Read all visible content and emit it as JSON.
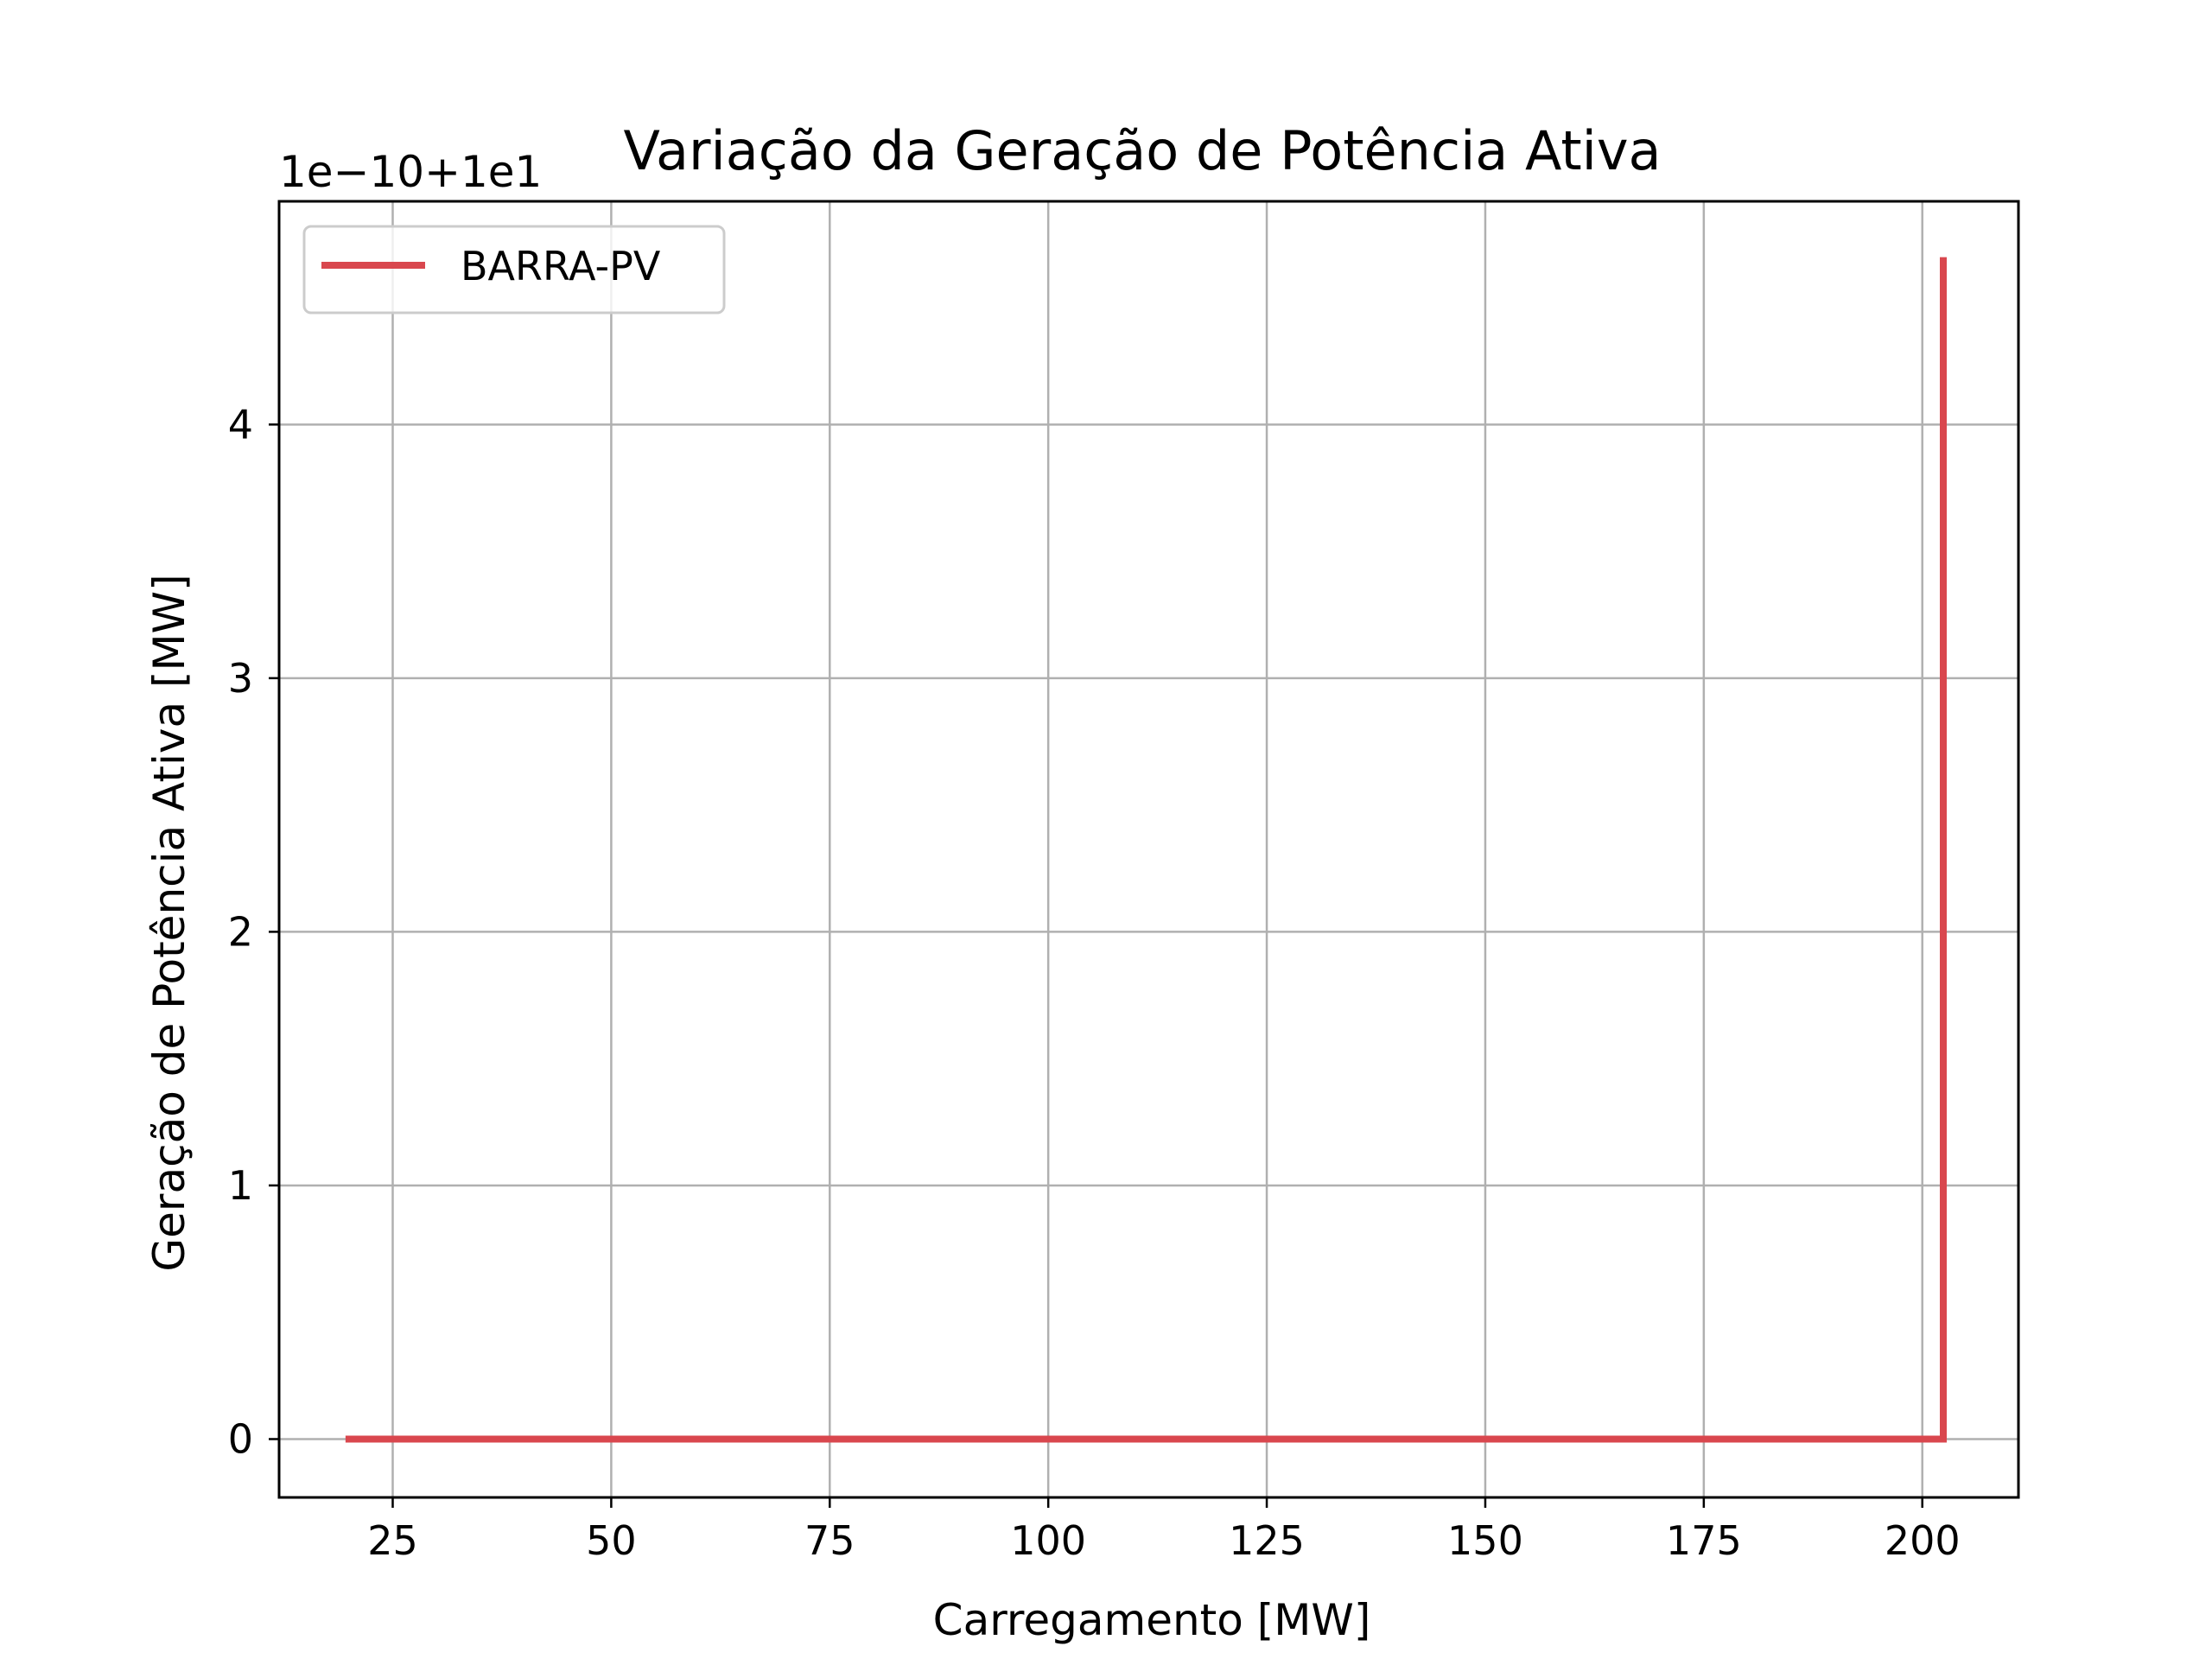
{
  "chart_data": {
    "type": "line",
    "title": "Variação da Geração de Potência Ativa",
    "xlabel": "Carregamento [MW]",
    "ylabel": "Geração de Potência Ativa [MW]",
    "y_offset_text": "1e−10+1e1",
    "xlim": [
      12,
      211
    ],
    "ylim": [
      -0.23,
      4.88
    ],
    "x_ticks": [
      25,
      50,
      75,
      100,
      125,
      150,
      175,
      200
    ],
    "y_ticks": [
      0,
      1,
      2,
      3,
      4
    ],
    "grid": true,
    "legend_position": "upper-left",
    "series": [
      {
        "name": "BARRA-PV",
        "color": "#d9474e",
        "points": [
          [
            19.6,
            0
          ],
          [
            202.4,
            0
          ],
          [
            202.4,
            4.66
          ]
        ]
      }
    ]
  }
}
